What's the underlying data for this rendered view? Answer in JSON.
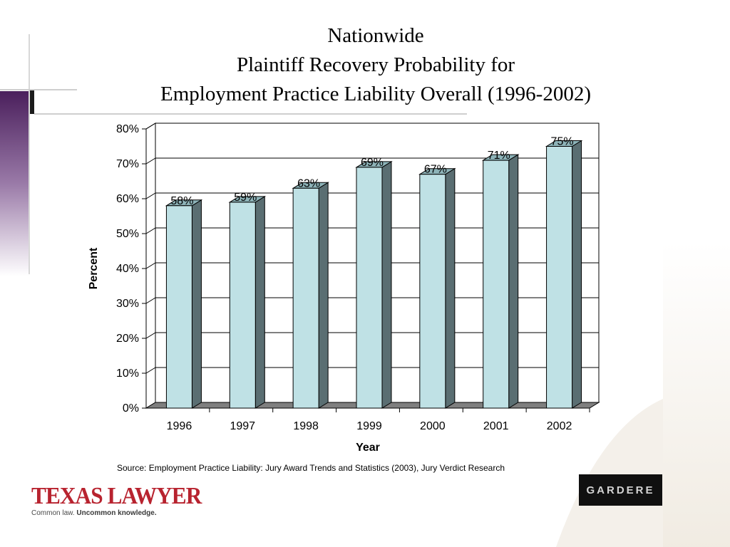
{
  "title": {
    "line1": "Nationwide",
    "line2": "Plaintiff Recovery Probability for",
    "line3": "Employment Practice Liability Overall (1996-2002)"
  },
  "chart_data": {
    "type": "bar",
    "categories": [
      "1996",
      "1997",
      "1998",
      "1999",
      "2000",
      "2001",
      "2002"
    ],
    "values": [
      58,
      59,
      63,
      69,
      67,
      71,
      75
    ],
    "data_labels": [
      "58%",
      "59%",
      "63%",
      "69%",
      "67%",
      "71%",
      "75%"
    ],
    "xlabel": "Year",
    "ylabel": "Percent",
    "ylim": [
      0,
      80
    ],
    "yticks": [
      "0%",
      "10%",
      "20%",
      "30%",
      "40%",
      "50%",
      "60%",
      "70%",
      "80%"
    ],
    "grid": true,
    "legend": "none",
    "colors": {
      "bar_front": "#bfe1e5",
      "bar_side": "#5a6e72",
      "bar_top": "#8db3b8"
    }
  },
  "source_note": "Source:  Employment Practice Liability:  Jury Award Trends and Statistics (2003), Jury Verdict Research",
  "logos": {
    "texas_lawyer": {
      "name": "TEXAS LAWYER",
      "tagline_plain": "Common law.",
      "tagline_bold": "Uncommon knowledge."
    },
    "gardere": "GARDERE"
  },
  "colors": {
    "accent_purple": "#5a2d6a",
    "logo_red": "#b8232f"
  }
}
